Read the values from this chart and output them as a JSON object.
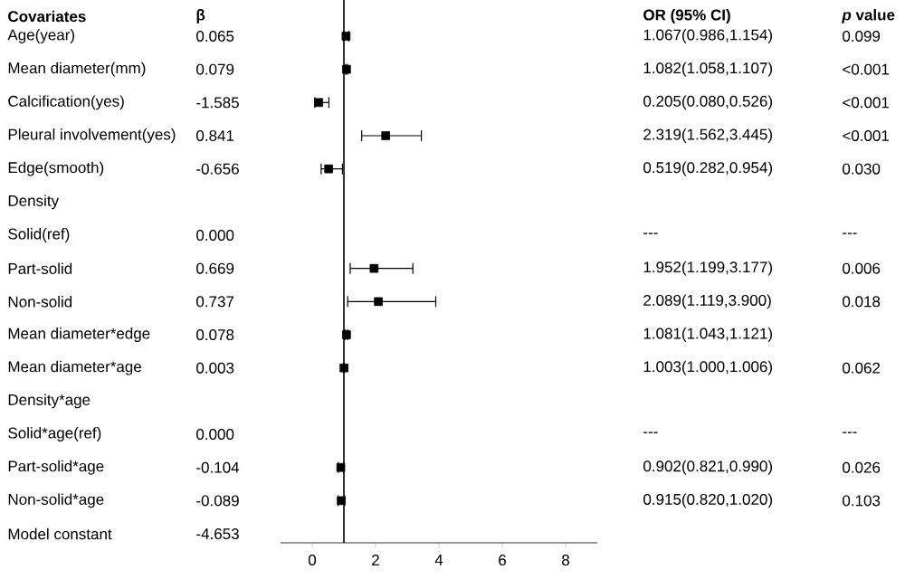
{
  "chart_data": {
    "type": "scatter",
    "orientation": "horizontal",
    "ylabel": "Covariates",
    "categories": [
      "Age(year)",
      "Mean diameter(mm)",
      "Calcification(yes)",
      "Pleural involvement(yes)",
      "Edge(smooth)",
      "Density",
      "Solid(ref)",
      "Part-solid",
      "Non-solid",
      "Mean diameter*edge",
      "Mean diameter*age",
      "Density*age",
      "Solid*age(ref)",
      "Part-solid*age",
      "Non-solid*age",
      "Model constant"
    ],
    "series": [
      {
        "color": "#000000",
        "marker": "square",
        "values": [
          1.067,
          1.082,
          0.205,
          2.319,
          0.519,
          null,
          null,
          1.952,
          2.089,
          1.081,
          1.003,
          null,
          null,
          0.902,
          0.915,
          null
        ],
        "errors": [
          [
            0.986,
            1.154
          ],
          [
            1.058,
            1.107
          ],
          [
            0.08,
            0.526
          ],
          [
            1.562,
            3.445
          ],
          [
            0.282,
            0.954
          ],
          null,
          null,
          [
            1.199,
            3.177
          ],
          [
            1.119,
            3.9
          ],
          [
            1.043,
            1.121
          ],
          [
            1.0,
            1.006
          ],
          null,
          null,
          [
            0.821,
            0.99
          ],
          [
            0.82,
            1.02
          ],
          null
        ],
        "value_labels": [
          "1.067(0.986,1.154)",
          "1.082(1.058,1.107)",
          "0.205(0.080,0.526)",
          "2.319(1.562,3.445)",
          "0.519(0.282,0.954)",
          null,
          "---",
          "1.952(1.199,3.177)",
          "2.089(1.119,3.900)",
          "1.081(1.043,1.121)",
          "1.003(1.000,1.006)",
          null,
          "---",
          "0.902(0.821,0.990)",
          "0.915(0.820,1.020)",
          null
        ]
      },
      {
        "type": "other",
        "values": [
          null,
          null,
          null,
          null,
          null,
          null,
          null,
          null,
          null,
          null,
          null,
          null,
          null,
          null,
          null,
          null
        ],
        "value_labels": [
          "0.065",
          "0.079",
          "-1.585",
          "0.841",
          "-0.656",
          null,
          "0.000",
          "0.669",
          "0.737",
          "0.078",
          "0.003",
          null,
          "0.000",
          "-0.104",
          "-0.089",
          "-4.653"
        ]
      },
      {
        "type": "other",
        "values": [
          null,
          null,
          null,
          null,
          null,
          null,
          null,
          null,
          null,
          null,
          null,
          null,
          null,
          null,
          null,
          null
        ],
        "value_labels": [
          "0.099",
          "<0.001",
          "<0.001",
          "<0.001",
          "0.030",
          null,
          "---",
          "0.006",
          "0.018",
          null,
          "0.062",
          null,
          "---",
          "0.026",
          "0.103",
          null
        ]
      }
    ],
    "xlim": [
      -1,
      9
    ],
    "xticks": [
      0,
      2,
      4,
      6,
      8
    ],
    "ref_lines": [
      {
        "axis": "x",
        "value": 1,
        "color": "#000000"
      }
    ],
    "annotations": [
      "β",
      "OR (95% CI)",
      "*p* value"
    ]
  }
}
